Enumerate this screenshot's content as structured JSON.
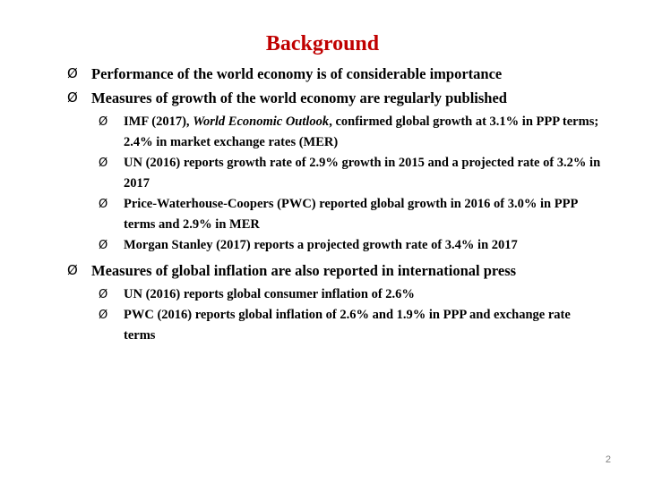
{
  "slide": {
    "title": "Background",
    "page_number": "2",
    "bullet_glyph": "Ø",
    "title_color": "#c00000",
    "items": [
      {
        "text": "Performance of the world economy is of considerable importance"
      },
      {
        "text": "Measures of growth of the world economy are regularly published"
      }
    ],
    "growth_subitems": [
      {
        "before": "IMF (2017), ",
        "italic": "World Economic Outlook",
        "after": ", confirmed global growth at 3.1% in PPP terms; 2.4% in market exchange rates (MER)"
      },
      {
        "text": "UN (2016) reports growth rate of 2.9% growth in 2015 and a projected rate of 3.2% in 2017"
      },
      {
        "text": "Price-Waterhouse-Coopers (PWC) reported global growth in 2016 of 3.0% in PPP terms and 2.9% in MER"
      },
      {
        "text": "Morgan Stanley (2017) reports a projected growth rate of 3.4% in 2017"
      }
    ],
    "inflation_item": {
      "text": "Measures of global inflation are also reported in international press"
    },
    "inflation_subitems": [
      {
        "text": "UN (2016) reports global consumer inflation of 2.6%"
      },
      {
        "text": "PWC (2016) reports global inflation of 2.6% and 1.9% in PPP and exchange rate terms"
      }
    ]
  }
}
